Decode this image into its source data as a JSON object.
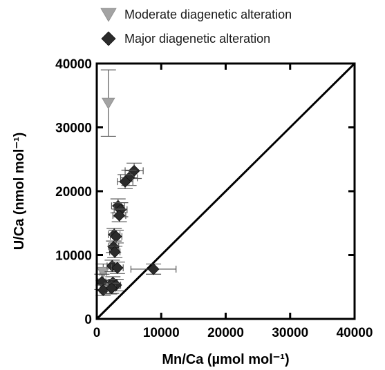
{
  "chart_data": {
    "type": "scatter",
    "x_label": "Mn/Ca (µmol mol⁻¹)",
    "y_label": "U/Ca (nmol mol⁻¹)",
    "xlim": [
      0,
      40000
    ],
    "ylim": [
      0,
      40000
    ],
    "x_ticks": [
      0,
      10000,
      20000,
      30000,
      40000
    ],
    "y_ticks": [
      0,
      10000,
      20000,
      30000,
      40000
    ],
    "x_tick_labels": [
      "0",
      "10000",
      "20000",
      "30000",
      "40000"
    ],
    "y_tick_labels": [
      "0",
      "10000",
      "20000",
      "30000",
      "40000"
    ],
    "grid": false,
    "legend_position": "top, above plot",
    "reference_line": {
      "description": "1:1 line",
      "from": [
        0,
        0
      ],
      "to": [
        40000,
        40000
      ]
    },
    "series": [
      {
        "name": "Moderate diagenetic alteration",
        "marker": "triangle-down",
        "color": "#a3a3a3",
        "points": [
          {
            "x": 1800,
            "y": 33800,
            "xerr": 0,
            "yerr": 5200
          },
          {
            "x": 1000,
            "y": 7300,
            "xerr": 500,
            "yerr": 1300
          },
          {
            "x": 2000,
            "y": 5000,
            "xerr": 500,
            "yerr": 1100
          }
        ]
      },
      {
        "name": "Major diagenetic alteration",
        "marker": "diamond",
        "color": "#2b2b2b",
        "points": [
          {
            "x": 5800,
            "y": 23200,
            "xerr": 1400,
            "yerr": 1200
          },
          {
            "x": 5000,
            "y": 22100,
            "xerr": 1300,
            "yerr": 1200
          },
          {
            "x": 4400,
            "y": 21500,
            "xerr": 1200,
            "yerr": 1100
          },
          {
            "x": 3300,
            "y": 17700,
            "xerr": 1000,
            "yerr": 1100
          },
          {
            "x": 3700,
            "y": 17100,
            "xerr": 1000,
            "yerr": 1100
          },
          {
            "x": 3500,
            "y": 16200,
            "xerr": 1000,
            "yerr": 1000
          },
          {
            "x": 2700,
            "y": 13200,
            "xerr": 900,
            "yerr": 1000
          },
          {
            "x": 3000,
            "y": 12900,
            "xerr": 900,
            "yerr": 1000
          },
          {
            "x": 2600,
            "y": 11300,
            "xerr": 800,
            "yerr": 900
          },
          {
            "x": 2800,
            "y": 10500,
            "xerr": 800,
            "yerr": 900
          },
          {
            "x": 2400,
            "y": 8300,
            "xerr": 800,
            "yerr": 900
          },
          {
            "x": 3200,
            "y": 8000,
            "xerr": 900,
            "yerr": 900
          },
          {
            "x": 8800,
            "y": 7800,
            "xerr": 3500,
            "yerr": 800
          },
          {
            "x": 800,
            "y": 5800,
            "xerr": 600,
            "yerr": 1200
          },
          {
            "x": 2500,
            "y": 5700,
            "xerr": 700,
            "yerr": 900
          },
          {
            "x": 3000,
            "y": 5300,
            "xerr": 700,
            "yerr": 900
          },
          {
            "x": 1000,
            "y": 4500,
            "xerr": 500,
            "yerr": 800
          },
          {
            "x": 2300,
            "y": 4800,
            "xerr": 600,
            "yerr": 800
          }
        ]
      }
    ]
  }
}
